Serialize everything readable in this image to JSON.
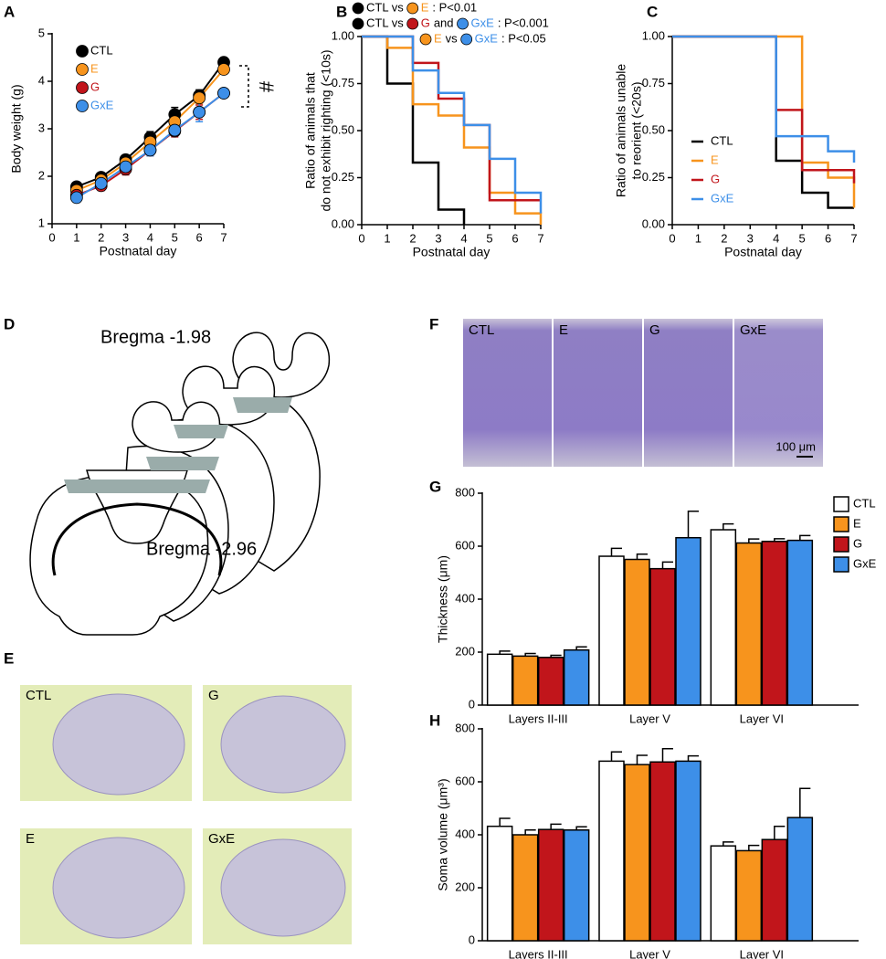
{
  "panel_letters": [
    "A",
    "B",
    "C",
    "D",
    "E",
    "F",
    "G",
    "H"
  ],
  "images": {
    "D": {
      "labels": [
        "Bregma -1.98",
        "Bregma -2.96"
      ]
    },
    "E": {
      "labels": [
        "CTL",
        "G",
        "E",
        "GxE"
      ]
    },
    "F": {
      "labels": [
        "CTL",
        "E",
        "G",
        "GxE"
      ],
      "scale": "100 μm"
    }
  },
  "chart_data": [
    {
      "type": "line",
      "xlabel": "Postnatal day",
      "ylabel": [
        "Body weight (g)"
      ],
      "x": [
        1,
        2,
        3,
        4,
        5,
        6,
        7
      ],
      "xlim": [
        0,
        7
      ],
      "xticks": [
        0,
        1,
        2,
        3,
        4,
        5,
        6,
        7
      ],
      "ylim": [
        1,
        5
      ],
      "yticks": [
        1,
        2,
        3,
        4,
        5
      ],
      "grid": false,
      "annotation": "#",
      "series": [
        {
          "name": "CTL",
          "color": "#000000",
          "values": [
            1.78,
            1.98,
            2.35,
            2.82,
            3.3,
            3.7,
            4.4
          ],
          "errors": [
            0.08,
            0.08,
            0.1,
            0.12,
            0.15,
            0.12,
            0.08
          ]
        },
        {
          "name": "E",
          "color": "#f7941d",
          "values": [
            1.7,
            1.92,
            2.28,
            2.72,
            3.15,
            3.65,
            4.25
          ],
          "errors": [
            0.08,
            0.08,
            0.1,
            0.1,
            0.15,
            0.12,
            0.1
          ]
        },
        {
          "name": "G",
          "color": "#c1151b",
          "values": [
            1.6,
            1.8,
            2.15,
            2.55,
            2.95,
            3.35,
            3.75
          ],
          "errors": [
            0.08,
            0.1,
            0.12,
            0.12,
            0.12,
            0.15,
            0.1
          ]
        },
        {
          "name": "GxE",
          "color": "#3d8fe8",
          "values": [
            1.55,
            1.85,
            2.2,
            2.55,
            2.97,
            3.35,
            3.75
          ],
          "errors": [
            0.1,
            0.1,
            0.1,
            0.12,
            0.12,
            0.2,
            0.1
          ]
        }
      ]
    },
    {
      "type": "step",
      "xlabel": "Postnatal day",
      "ylabel": [
        "Ratio of animals that",
        "do not exhibit righting (<10s)"
      ],
      "x": [
        0,
        1,
        2,
        3,
        4,
        5,
        6,
        7
      ],
      "xlim": [
        0,
        7
      ],
      "xticks": [
        0,
        1,
        2,
        3,
        4,
        5,
        6,
        7
      ],
      "ylim": [
        0,
        1
      ],
      "yticks": [
        {
          "value": 0,
          "label": "0.00"
        },
        {
          "value": 0.25,
          "label": "0.25"
        },
        {
          "value": 0.5,
          "label": "0.50"
        },
        {
          "value": 0.75,
          "label": "0.75"
        },
        {
          "value": 1,
          "label": "1.00"
        }
      ],
      "series": [
        {
          "name": "CTL",
          "color": "#000000",
          "values": [
            1,
            0.75,
            0.33,
            0.08,
            0,
            null,
            null,
            null
          ]
        },
        {
          "name": "E",
          "color": "#f7941d",
          "values": [
            1,
            0.94,
            0.64,
            0.58,
            0.41,
            0.17,
            0.06,
            0.0
          ]
        },
        {
          "name": "G",
          "color": "#c1151b",
          "values": [
            1,
            1,
            0.86,
            0.67,
            0.53,
            0.13,
            0.13,
            0.13
          ]
        },
        {
          "name": "GxE",
          "color": "#3d8fe8",
          "values": [
            1,
            1,
            0.82,
            0.7,
            0.53,
            0.35,
            0.17,
            0.06
          ]
        }
      ],
      "legend_rows": [
        [
          {
            "text": "CTL vs",
            "color": "#000000",
            "marker": "#000000"
          },
          {
            "text": "E",
            "color": "#f7941d",
            "marker": "#f7941d"
          },
          {
            "text": ": P<0.01",
            "color": "#000000"
          }
        ],
        [
          {
            "text": "CTL vs",
            "color": "#000000",
            "marker": "#000000"
          },
          {
            "text": "G",
            "color": "#c1151b",
            "marker": "#c1151b"
          },
          {
            "text": "and",
            "color": "#000000"
          },
          {
            "text": "GxE",
            "color": "#3d8fe8",
            "marker": "#3d8fe8"
          },
          {
            "text": ": P<0.001",
            "color": "#000000"
          }
        ],
        [
          {
            "text": "E",
            "color": "#f7941d",
            "marker": "#f7941d"
          },
          {
            "text": "vs",
            "color": "#000000"
          },
          {
            "text": "GxE",
            "color": "#3d8fe8",
            "marker": "#3d8fe8"
          },
          {
            "text": ": P<0.05",
            "color": "#000000"
          }
        ]
      ]
    },
    {
      "type": "step",
      "xlabel": "Postnatal day",
      "ylabel": [
        "Ratio of animals unable",
        "to reorient (<20s)"
      ],
      "x": [
        0,
        1,
        2,
        3,
        4,
        5,
        6,
        7
      ],
      "xlim": [
        0,
        7
      ],
      "xticks": [
        0,
        1,
        2,
        3,
        4,
        5,
        6,
        7
      ],
      "ylim": [
        0,
        1
      ],
      "yticks": [
        {
          "value": 0,
          "label": "0.00"
        },
        {
          "value": 0.25,
          "label": "0.25"
        },
        {
          "value": 0.5,
          "label": "0.50"
        },
        {
          "value": 0.75,
          "label": "0.75"
        },
        {
          "value": 1,
          "label": "1.00"
        }
      ],
      "legend": true,
      "series": [
        {
          "name": "CTL",
          "color": "#000000",
          "values": [
            1,
            1,
            1,
            1,
            0.34,
            0.17,
            0.09,
            0.09
          ]
        },
        {
          "name": "E",
          "color": "#f7941d",
          "values": [
            1,
            1,
            1,
            1,
            1,
            0.33,
            0.25,
            0.09
          ]
        },
        {
          "name": "G",
          "color": "#c1151b",
          "values": [
            1,
            1,
            1,
            1,
            0.61,
            0.29,
            0.29,
            0.22
          ]
        },
        {
          "name": "GxE",
          "color": "#3d8fe8",
          "values": [
            1,
            1,
            1,
            1,
            0.47,
            0.47,
            0.39,
            0.33
          ]
        }
      ]
    },
    {
      "type": "bar",
      "ylabel": [
        "Thickness (μm)"
      ],
      "categories": [
        "Layers II-III",
        "Layer V",
        "Layer VI"
      ],
      "ylim": [
        0,
        800
      ],
      "yticks": [
        0,
        200,
        400,
        600,
        800
      ],
      "legend": true,
      "series": [
        {
          "name": "CTL",
          "color": "#ffffff",
          "values": [
            192,
            562,
            662
          ],
          "errors": [
            12,
            30,
            22
          ]
        },
        {
          "name": "E",
          "color": "#f7941d",
          "values": [
            185,
            550,
            612
          ],
          "errors": [
            10,
            20,
            15
          ]
        },
        {
          "name": "G",
          "color": "#c1151b",
          "values": [
            180,
            515,
            618
          ],
          "errors": [
            8,
            25,
            10
          ]
        },
        {
          "name": "GxE",
          "color": "#3d8fe8",
          "values": [
            208,
            632,
            622
          ],
          "errors": [
            12,
            100,
            18
          ]
        }
      ]
    },
    {
      "type": "bar",
      "ylabel": [
        "Soma volume (μm³)"
      ],
      "categories": [
        "Layers II-III",
        "Layer V",
        "Layer VI"
      ],
      "ylim": [
        0,
        800
      ],
      "yticks": [
        0,
        200,
        400,
        600,
        800
      ],
      "legend": false,
      "series": [
        {
          "color": "#ffffff",
          "values": [
            432,
            678,
            358
          ],
          "errors": [
            30,
            35,
            15
          ]
        },
        {
          "color": "#f7941d",
          "values": [
            400,
            665,
            340
          ],
          "errors": [
            18,
            35,
            20
          ]
        },
        {
          "color": "#c1151b",
          "values": [
            420,
            675,
            382
          ],
          "errors": [
            20,
            50,
            50
          ]
        },
        {
          "color": "#3d8fe8",
          "values": [
            418,
            678,
            465
          ],
          "errors": [
            12,
            20,
            110
          ]
        }
      ]
    }
  ]
}
